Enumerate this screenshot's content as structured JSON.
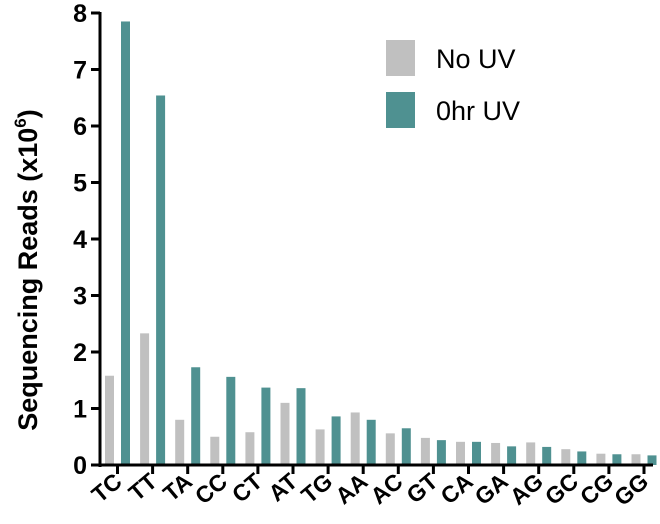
{
  "chart_data": {
    "type": "bar",
    "ylabel_main": "Sequencing Reads (x10",
    "ylabel_exp": "6",
    "ylabel_close": ")",
    "xlabel": "",
    "ylim": [
      0,
      8
    ],
    "yticks": [
      "0",
      "1",
      "2",
      "3",
      "4",
      "5",
      "6",
      "7",
      "8"
    ],
    "categories": [
      "TC",
      "TT",
      "TA",
      "CC",
      "CT",
      "AT",
      "TG",
      "AA",
      "AC",
      "GT",
      "CA",
      "GA",
      "AG",
      "GC",
      "CG",
      "GG"
    ],
    "series": [
      {
        "name": "No UV",
        "color": "#c0c0c0",
        "values": [
          1.58,
          2.33,
          0.8,
          0.5,
          0.58,
          1.1,
          0.63,
          0.93,
          0.56,
          0.48,
          0.41,
          0.39,
          0.4,
          0.28,
          0.2,
          0.19
        ]
      },
      {
        "name": "0hr UV",
        "color": "#4f9191",
        "values": [
          7.85,
          6.54,
          1.73,
          1.56,
          1.37,
          1.36,
          0.86,
          0.8,
          0.65,
          0.44,
          0.41,
          0.33,
          0.32,
          0.24,
          0.19,
          0.17
        ]
      }
    ],
    "legend_position": "top-right",
    "grid": false
  }
}
